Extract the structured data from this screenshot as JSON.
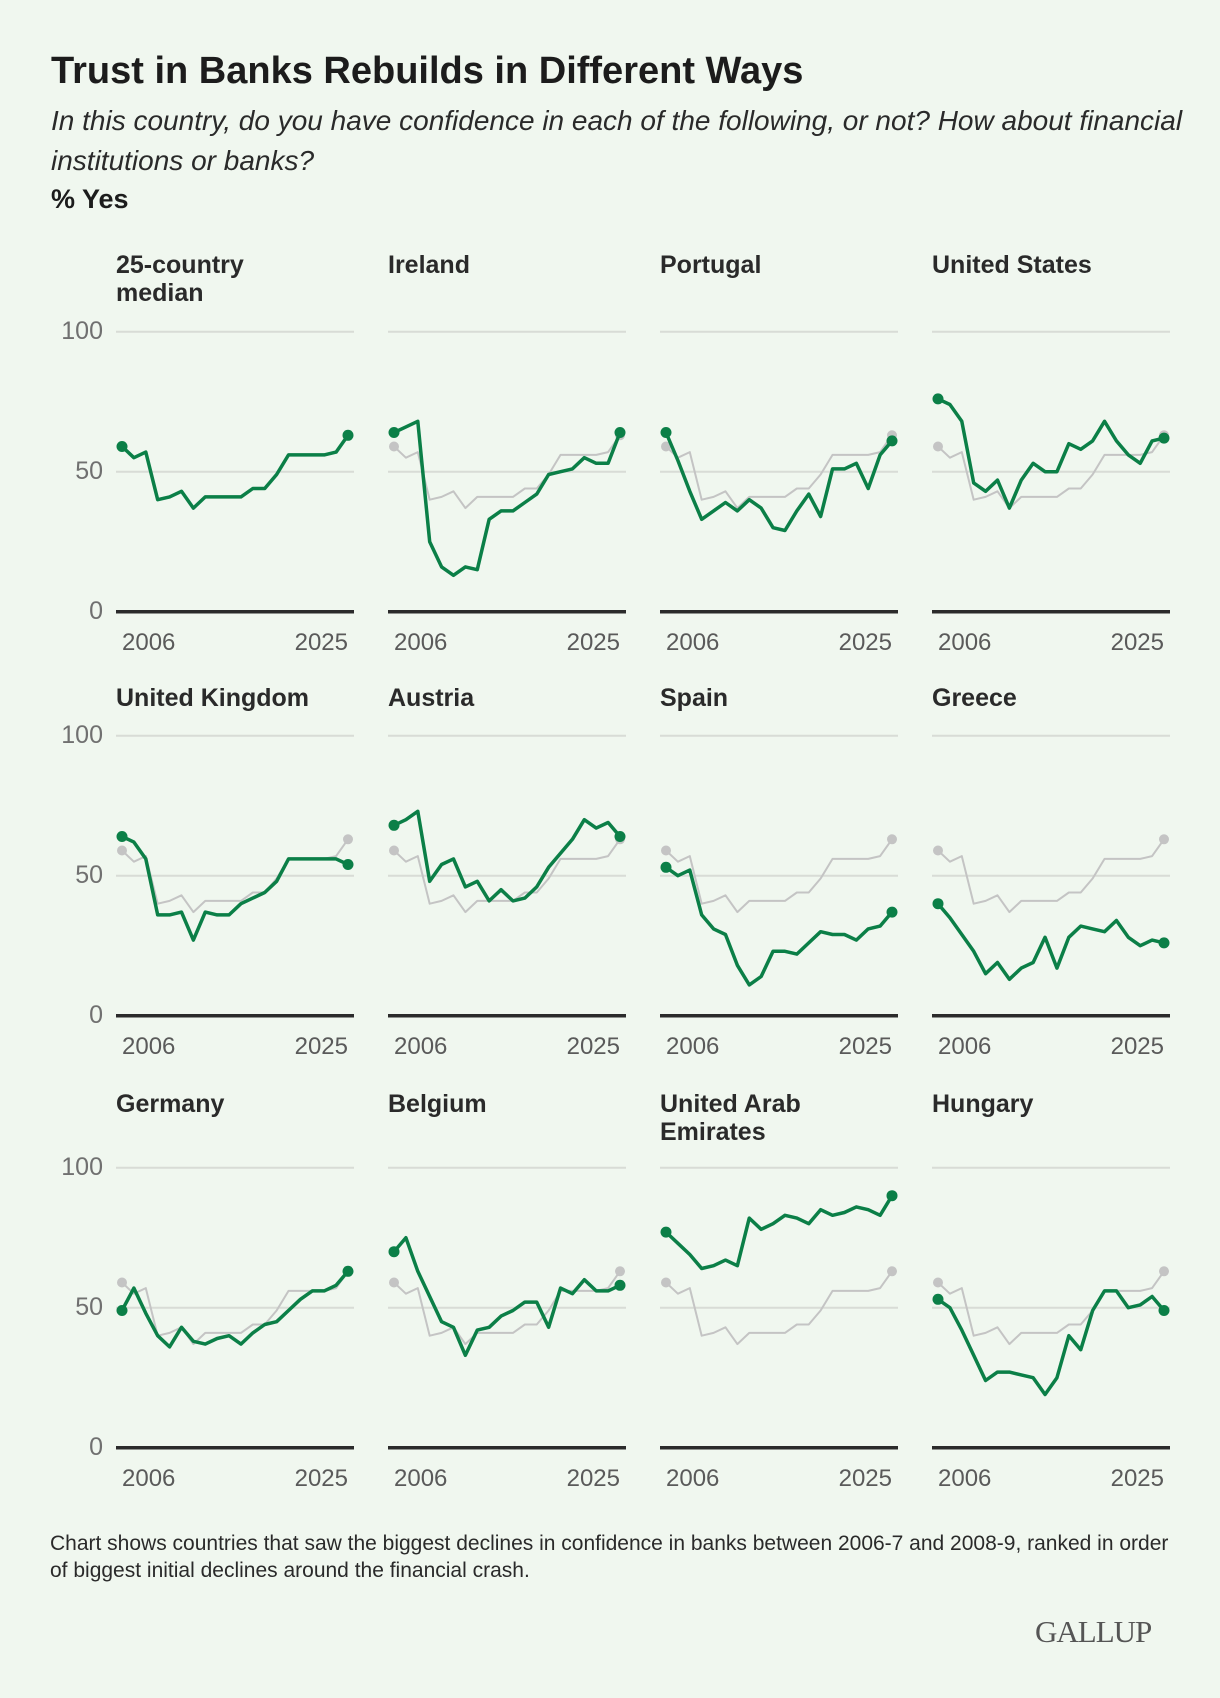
{
  "header": {
    "title": "Trust in Banks Rebuilds in Different Ways",
    "subtitle": "In this country, do you have confidence in each of the following, or not? How about financial institutions or banks?",
    "unit": "% Yes"
  },
  "footnote": "Chart shows countries that saw the biggest declines in confidence in banks between 2006-7 and 2008-9, ranked in order of biggest initial declines around the financial crash.",
  "logo": "GALLUP",
  "colors": {
    "country": "#0b7f47",
    "median": "#c4c4c4",
    "grid": "#d8dcd6",
    "baseline": "#2b2b2b",
    "background": "#f0f7ef"
  },
  "chart_data": {
    "type": "line",
    "title": "Trust in Banks Rebuilds in Different Ways",
    "ylabel": "% Yes",
    "ylim": [
      0,
      100
    ],
    "yticks": [
      "100",
      "50",
      "0"
    ],
    "ytick_values": [
      100,
      50,
      0
    ],
    "x": [
      2006,
      2007,
      2008,
      2009,
      2010,
      2011,
      2012,
      2013,
      2014,
      2015,
      2016,
      2017,
      2018,
      2019,
      2020,
      2021,
      2022,
      2023,
      2024,
      2025
    ],
    "xtick_labels": [
      "2006",
      "2025"
    ],
    "grid": true,
    "reference_series": "25-country median",
    "panels": [
      {
        "name": "25-country median",
        "title_lines": [
          "25-country",
          "median"
        ],
        "values": [
          59,
          55,
          57,
          40,
          41,
          43,
          37,
          41,
          41,
          41,
          41,
          44,
          44,
          49,
          56,
          56,
          56,
          56,
          57,
          63
        ]
      },
      {
        "name": "Ireland",
        "title_lines": [
          "Ireland"
        ],
        "values": [
          64,
          66,
          68,
          25,
          16,
          13,
          16,
          15,
          33,
          36,
          36,
          39,
          42,
          49,
          50,
          51,
          55,
          53,
          53,
          64
        ]
      },
      {
        "name": "Portugal",
        "title_lines": [
          "Portugal"
        ],
        "values": [
          64,
          54,
          43,
          33,
          36,
          39,
          36,
          40,
          37,
          30,
          29,
          36,
          42,
          34,
          51,
          51,
          53,
          44,
          56,
          61
        ]
      },
      {
        "name": "United States",
        "title_lines": [
          "United States"
        ],
        "values": [
          76,
          74,
          68,
          46,
          43,
          47,
          37,
          47,
          53,
          50,
          50,
          60,
          58,
          61,
          68,
          61,
          56,
          53,
          61,
          62
        ]
      },
      {
        "name": "United Kingdom",
        "title_lines": [
          "United Kingdom"
        ],
        "values": [
          64,
          62,
          56,
          36,
          36,
          37,
          27,
          37,
          36,
          36,
          40,
          42,
          44,
          48,
          56,
          56,
          56,
          56,
          56,
          54
        ]
      },
      {
        "name": "Austria",
        "title_lines": [
          "Austria"
        ],
        "values": [
          68,
          70,
          73,
          48,
          54,
          56,
          46,
          48,
          41,
          45,
          41,
          42,
          46,
          53,
          58,
          63,
          70,
          67,
          69,
          64
        ]
      },
      {
        "name": "Spain",
        "title_lines": [
          "Spain"
        ],
        "values": [
          53,
          50,
          52,
          36,
          31,
          29,
          18,
          11,
          14,
          23,
          23,
          22,
          26,
          30,
          29,
          29,
          27,
          31,
          32,
          37
        ]
      },
      {
        "name": "Greece",
        "title_lines": [
          "Greece"
        ],
        "values": [
          40,
          35,
          29,
          23,
          15,
          19,
          13,
          17,
          19,
          28,
          17,
          28,
          32,
          31,
          30,
          34,
          28,
          25,
          27,
          26
        ]
      },
      {
        "name": "Germany",
        "title_lines": [
          "Germany"
        ],
        "values": [
          49,
          57,
          48,
          40,
          36,
          43,
          38,
          37,
          39,
          40,
          37,
          41,
          44,
          45,
          49,
          53,
          56,
          56,
          58,
          63
        ]
      },
      {
        "name": "Belgium",
        "title_lines": [
          "Belgium"
        ],
        "values": [
          70,
          75,
          63,
          54,
          45,
          43,
          33,
          42,
          43,
          47,
          49,
          52,
          52,
          43,
          57,
          55,
          60,
          56,
          56,
          58
        ]
      },
      {
        "name": "United Arab Emirates",
        "title_lines": [
          "United Arab",
          "Emirates"
        ],
        "values": [
          77,
          73,
          69,
          64,
          65,
          67,
          65,
          82,
          78,
          80,
          83,
          82,
          80,
          85,
          83,
          84,
          86,
          85,
          83,
          90
        ]
      },
      {
        "name": "Hungary",
        "title_lines": [
          "Hungary"
        ],
        "values": [
          53,
          50,
          42,
          33,
          24,
          27,
          27,
          26,
          25,
          19,
          25,
          40,
          35,
          49,
          56,
          56,
          50,
          51,
          54,
          49
        ]
      }
    ]
  }
}
